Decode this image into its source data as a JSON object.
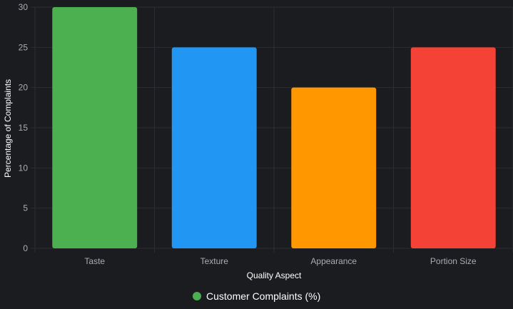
{
  "chart_data": {
    "type": "bar",
    "categories": [
      "Taste",
      "Texture",
      "Appearance",
      "Portion Size"
    ],
    "series": [
      {
        "name": "Customer Complaints (%)",
        "values": [
          30,
          25,
          20,
          25
        ],
        "colors": [
          "#4caf50",
          "#2196f3",
          "#ff9800",
          "#f44336"
        ]
      }
    ],
    "xlabel": "Quality Aspect",
    "ylabel": "Percentage of Complaints",
    "ylim": [
      0,
      30
    ],
    "yticks": [
      0,
      5,
      10,
      15,
      20,
      25,
      30
    ],
    "grid": true,
    "legend_position": "bottom",
    "legend_marker_color": "#4caf50"
  },
  "theme": {
    "background": "#1b1c20",
    "grid_color": "#2c2d32",
    "tick_color": "#a9acb3",
    "title_color": "#ffffff"
  }
}
